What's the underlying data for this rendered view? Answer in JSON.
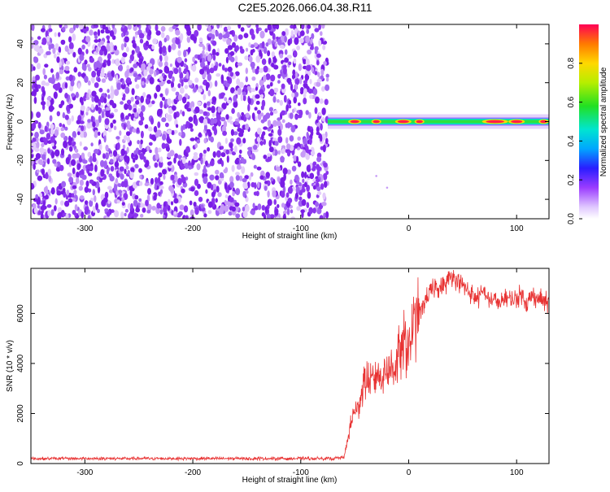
{
  "title": "C2E5.2026.066.04.38.R11",
  "colors": {
    "snr_line": "#e83232",
    "spec_points": "#7d22e6",
    "background": "#ffffff"
  },
  "chart_data": [
    {
      "type": "heatmap",
      "name": "spectrogram",
      "xlabel": "Height of straight line (km)",
      "ylabel": "Frequency (Hz)",
      "xlim": [
        -350,
        130
      ],
      "ylim": [
        -50,
        50
      ],
      "xticks": [
        -300,
        -200,
        -100,
        0,
        100
      ],
      "yticks": [
        -40,
        -20,
        0,
        20,
        40
      ],
      "noise_region_x": [
        -350,
        -75
      ],
      "signal_trace_x": [
        -75,
        130
      ],
      "signal_trace_frequency": 0,
      "colorbar": {
        "label": "Normalized spectral amplitude",
        "range": [
          0.0,
          1.0
        ],
        "ticks": [
          0.0,
          0.2,
          0.4,
          0.6,
          0.8
        ]
      }
    },
    {
      "type": "line",
      "name": "snr",
      "xlabel": "Height of straight line (km)",
      "ylabel": "SNR (10 * v/v)",
      "xlim": [
        -350,
        130
      ],
      "ylim": [
        0,
        7800
      ],
      "xticks": [
        -300,
        -200,
        -100,
        0,
        100
      ],
      "yticks": [
        0,
        2000,
        4000,
        6000
      ],
      "series": [
        {
          "name": "SNR",
          "x": [
            -350,
            -300,
            -200,
            -100,
            -70,
            -60,
            -58,
            -55,
            -52,
            -50,
            -48,
            -45,
            -40,
            -35,
            -30,
            -25,
            -20,
            -15,
            -10,
            -5,
            0,
            5,
            10,
            15,
            20,
            25,
            30,
            35,
            40,
            45,
            50,
            55,
            60,
            65,
            70,
            75,
            80,
            85,
            90,
            95,
            100,
            105,
            110,
            115,
            120,
            125,
            130
          ],
          "y": [
            200,
            200,
            200,
            200,
            200,
            250,
            600,
            1300,
            1800,
            2200,
            2000,
            2700,
            3400,
            3100,
            3700,
            3500,
            3900,
            3800,
            4200,
            4800,
            4700,
            5500,
            6000,
            6500,
            6800,
            7100,
            7000,
            7200,
            7500,
            7300,
            7100,
            6900,
            6700,
            6600,
            6900,
            6500,
            6600,
            6300,
            6700,
            6500,
            6600,
            6800,
            6400,
            6700,
            6600,
            6500,
            6400
          ]
        }
      ]
    }
  ]
}
